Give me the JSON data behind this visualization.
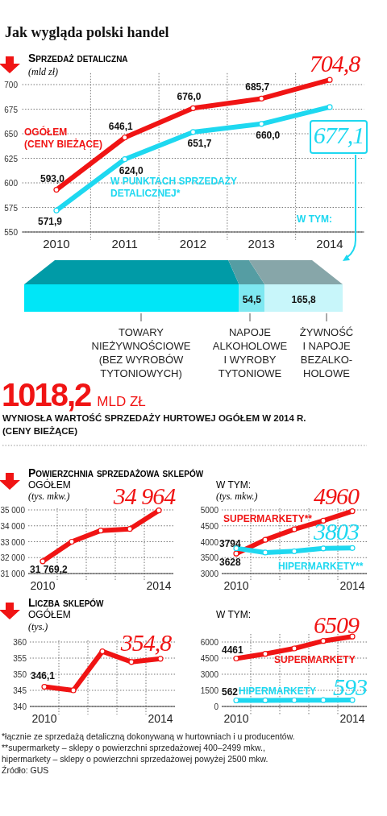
{
  "chart_data": [
    {
      "type": "other",
      "title": "Jak wygląda polski handel"
    },
    {
      "type": "line",
      "title": "Sprzedaż detaliczna",
      "ylabel": "(mld zł)",
      "categories": [
        "2010",
        "2011",
        "2012",
        "2013",
        "2014"
      ],
      "ylim": [
        550,
        710
      ],
      "yticks": [
        550,
        575,
        600,
        625,
        650,
        675,
        700
      ],
      "grid": true,
      "marker": "circle",
      "series": [
        {
          "name": "OGÓŁEM (CENY BIEŻĄCE)",
          "color": "#f01414",
          "values": [
            593.0,
            646.1,
            676.0,
            685.7,
            704.8
          ],
          "value_labels": [
            "593,0",
            "646,1",
            "676,0",
            "685,7",
            "704,8"
          ]
        },
        {
          "name": "W PUNKTACH SPRZEDAŻY DETALICZNEJ*",
          "color": "#1ed8f0",
          "values": [
            571.9,
            624.0,
            651.7,
            660.0,
            677.1
          ],
          "value_labels": [
            "571,9",
            "624,0",
            "651,7",
            "660,0",
            "677,1"
          ]
        }
      ]
    },
    {
      "type": "bar",
      "orientation": "horizontal",
      "stacked": true,
      "title": "W TYM:",
      "categories": [
        null
      ],
      "series": [
        {
          "name": "TOWARY NIEŻYWNOŚCIOWE (BEZ WYROBÓW TYTONIOWYCH)",
          "color": "#00e6f7",
          "values": [
            456.8
          ]
        },
        {
          "name": "NAPOJE ALKOHOLOWE I WYROBY TYTONIOWE",
          "color": "#7ee8f1",
          "values": [
            54.5
          ],
          "value_labels": [
            "54,5"
          ]
        },
        {
          "name": "ŻYWNOŚĆ I NAPOJE BEZALKO-HOLOWE",
          "color": "#c8f6fa",
          "values": [
            165.8
          ],
          "value_labels": [
            "165,8"
          ]
        }
      ]
    },
    {
      "type": "other",
      "title": "1018,2",
      "subtitle": "MLD ZŁ",
      "annotations": [
        "WYNIOSŁA WARTOŚĆ SPRZEDAŻY HURTOWEJ OGÓŁEM W 2014 R.",
        "(CENY BIEŻĄCE)"
      ]
    },
    {
      "type": "line",
      "title": "Powierzchnia sprzedażowa sklepów",
      "subtitle": "OGÓŁEM",
      "ylabel": "(tys. mkw.)",
      "categories": [
        "2010",
        null,
        null,
        null,
        "2014"
      ],
      "ylim": [
        31000,
        35000
      ],
      "yticks": [
        {
          "value": 31000,
          "label": "31 000"
        },
        {
          "value": 32000,
          "label": "32 000"
        },
        {
          "value": 33000,
          "label": "33 000"
        },
        {
          "value": 34000,
          "label": "34 000"
        },
        {
          "value": 35000,
          "label": "35 000"
        }
      ],
      "grid": true,
      "marker": "circle",
      "series": [
        {
          "color": "#f01414",
          "values": [
            31769.2,
            33000,
            33700,
            33800,
            34964
          ],
          "value_labels": [
            "31 769,2",
            null,
            null,
            null,
            "34 964"
          ]
        }
      ]
    },
    {
      "type": "line",
      "subtitle": "W TYM:",
      "ylabel": "(tys. mkw.)",
      "categories": [
        "2010",
        null,
        null,
        null,
        "2014"
      ],
      "ylim": [
        3000,
        5000
      ],
      "yticks": [
        3000,
        3500,
        4000,
        4500,
        5000
      ],
      "grid": true,
      "marker": "circle",
      "series": [
        {
          "name": "SUPERMARKETY**",
          "color": "#f01414",
          "values": [
            3628,
            4060,
            4390,
            4660,
            4960
          ],
          "value_labels": [
            "3628",
            null,
            null,
            null,
            "4960"
          ]
        },
        {
          "name": "HIPERMARKETY**",
          "color": "#1ed8f0",
          "values": [
            3794,
            3660,
            3700,
            3790,
            3803
          ],
          "value_labels": [
            "3794",
            null,
            null,
            null,
            "3803"
          ]
        }
      ]
    },
    {
      "type": "line",
      "title": "Liczba sklepów",
      "subtitle": "OGÓŁEM",
      "ylabel": "(tys.)",
      "categories": [
        "2010",
        null,
        null,
        null,
        "2014"
      ],
      "ylim": [
        340,
        360
      ],
      "yticks": [
        340,
        345,
        350,
        355,
        360
      ],
      "grid": true,
      "marker": "circle",
      "series": [
        {
          "color": "#f01414",
          "values": [
            346.1,
            345.0,
            357.1,
            353.8,
            354.8
          ],
          "value_labels": [
            "346,1",
            null,
            null,
            null,
            "354,8"
          ]
        }
      ]
    },
    {
      "type": "line",
      "subtitle": "W TYM:",
      "categories": [
        "2010",
        null,
        null,
        null,
        "2014"
      ],
      "ylim": [
        0,
        6600
      ],
      "yticks": [
        0,
        1500,
        3000,
        4500,
        6000
      ],
      "grid": true,
      "marker": "circle",
      "series": [
        {
          "name": "SUPERMARKETY",
          "color": "#f01414",
          "values": [
            4461,
            4900,
            5400,
            6100,
            6509
          ],
          "value_labels": [
            "4461",
            null,
            null,
            null,
            "6509"
          ]
        },
        {
          "name": "HIPERMARKETY",
          "color": "#1ed8f0",
          "values": [
            562,
            570,
            580,
            590,
            593
          ],
          "value_labels": [
            "562",
            null,
            null,
            null,
            "593"
          ]
        }
      ]
    },
    {
      "type": "other",
      "annotations": [
        "*łącznie ze sprzedażą detaliczną dokonywaną w hurtowniach i u producentów.",
        "**supermarkety – sklepy o powierzchni sprzedażowej 400–2499 mkw.,",
        "hipermarkety – sklepy o powierzchni sprzedażowej powyżej 2500 mkw.",
        "Źródło: GUS"
      ]
    }
  ]
}
